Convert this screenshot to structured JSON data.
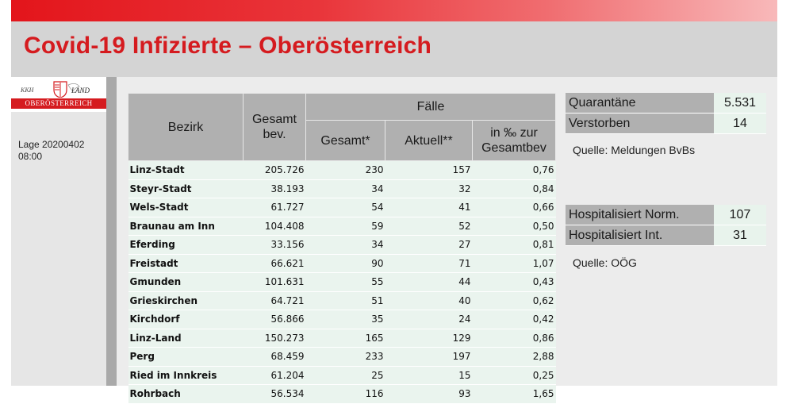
{
  "header": {
    "title": "Covid-19 Infizierte – Oberösterreich"
  },
  "logo": {
    "left_text": "KKH",
    "right_text": "LAND",
    "band_text": "OBERÖSTERREICH"
  },
  "sidebar": {
    "lage_line1": "Lage 20200402",
    "lage_line2": "08:00"
  },
  "table": {
    "headers": {
      "bezirk": "Bezirk",
      "bev": "Gesamt bev.",
      "faelle": "Fälle",
      "gesamt": "Gesamt*",
      "aktuell": "Aktuell**",
      "promille": "in ‰ zur Gesamtbev"
    },
    "rows": [
      {
        "name": "Linz-Stadt",
        "bev": "205.726",
        "gesamt": "230",
        "aktuell": "157",
        "promille": "0,76"
      },
      {
        "name": "Steyr-Stadt",
        "bev": "38.193",
        "gesamt": "34",
        "aktuell": "32",
        "promille": "0,84"
      },
      {
        "name": "Wels-Stadt",
        "bev": "61.727",
        "gesamt": "54",
        "aktuell": "41",
        "promille": "0,66"
      },
      {
        "name": "Braunau am Inn",
        "bev": "104.408",
        "gesamt": "59",
        "aktuell": "52",
        "promille": "0,50"
      },
      {
        "name": "Eferding",
        "bev": "33.156",
        "gesamt": "34",
        "aktuell": "27",
        "promille": "0,81"
      },
      {
        "name": "Freistadt",
        "bev": "66.621",
        "gesamt": "90",
        "aktuell": "71",
        "promille": "1,07"
      },
      {
        "name": "Gmunden",
        "bev": "101.631",
        "gesamt": "55",
        "aktuell": "44",
        "promille": "0,43"
      },
      {
        "name": "Grieskirchen",
        "bev": "64.721",
        "gesamt": "51",
        "aktuell": "40",
        "promille": "0,62"
      },
      {
        "name": "Kirchdorf",
        "bev": "56.866",
        "gesamt": "35",
        "aktuell": "24",
        "promille": "0,42"
      },
      {
        "name": "Linz-Land",
        "bev": "150.273",
        "gesamt": "165",
        "aktuell": "129",
        "promille": "0,86"
      },
      {
        "name": "Perg",
        "bev": "68.459",
        "gesamt": "233",
        "aktuell": "197",
        "promille": "2,88"
      },
      {
        "name": "Ried im Innkreis",
        "bev": "61.204",
        "gesamt": "25",
        "aktuell": "15",
        "promille": "0,25"
      },
      {
        "name": "Rohrbach",
        "bev": "56.534",
        "gesamt": "116",
        "aktuell": "93",
        "promille": "1,65"
      }
    ]
  },
  "stats": {
    "quarantaene_label": "Quarantäne",
    "quarantaene_value": "5.531",
    "verstorben_label": "Verstorben",
    "verstorben_value": "14",
    "quelle1": "Quelle: Meldungen BvBs",
    "hosp_norm_label": "Hospitalisiert Norm.",
    "hosp_norm_value": "107",
    "hosp_int_label": "Hospitalisiert Int.",
    "hosp_int_value": "31",
    "quelle2": "Quelle: OÖG"
  },
  "colors": {
    "accent": "#d51b1f",
    "header_gray": "#b0b0b0",
    "cell_green": "#eaf4ee"
  }
}
